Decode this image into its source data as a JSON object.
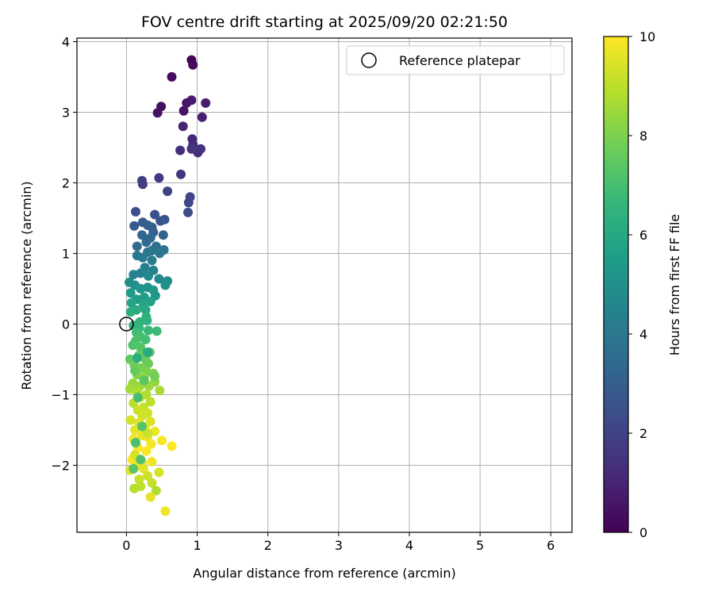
{
  "chart_data": {
    "type": "scatter",
    "title": "FOV centre drift starting at 2025/09/20 02:21:50",
    "xlabel": "Angular distance from reference (arcmin)",
    "ylabel": "Rotation from reference (arcmin)",
    "xlim": [
      -0.7,
      6.3
    ],
    "ylim": [
      -2.95,
      4.05
    ],
    "xticks": [
      0,
      1,
      2,
      3,
      4,
      5,
      6
    ],
    "yticks": [
      -2,
      -1,
      0,
      1,
      2,
      3,
      4
    ],
    "grid": true,
    "legend": {
      "position": "top-right",
      "label": "Reference platepar"
    },
    "reference_point": {
      "x": 0,
      "y": 0
    },
    "colorbar": {
      "label": "Hours from first FF file",
      "min": 0,
      "max": 10,
      "ticks": [
        0,
        2,
        4,
        6,
        8,
        10
      ],
      "colormap": "viridis"
    },
    "colormap_stops": [
      "#440154",
      "#482878",
      "#3e4989",
      "#31688e",
      "#26828e",
      "#1f9e89",
      "#35b779",
      "#6ece58",
      "#b5de2b",
      "#fde725"
    ],
    "points": [
      [
        0.92,
        3.74,
        0.1
      ],
      [
        0.94,
        3.67,
        0.2
      ],
      [
        0.64,
        3.5,
        0.3
      ],
      [
        0.49,
        3.08,
        0.4
      ],
      [
        0.44,
        2.99,
        0.5
      ],
      [
        0.81,
        3.02,
        0.5
      ],
      [
        0.85,
        3.13,
        0.6
      ],
      [
        0.92,
        3.17,
        0.7
      ],
      [
        1.12,
        3.13,
        0.8
      ],
      [
        1.07,
        2.93,
        0.9
      ],
      [
        0.8,
        2.8,
        1.0
      ],
      [
        0.93,
        2.62,
        1.1
      ],
      [
        0.94,
        2.54,
        1.2
      ],
      [
        0.76,
        2.46,
        1.3
      ],
      [
        1.01,
        2.43,
        1.3
      ],
      [
        1.05,
        2.48,
        1.4
      ],
      [
        0.92,
        2.48,
        1.5
      ],
      [
        0.77,
        2.12,
        1.6
      ],
      [
        0.46,
        2.07,
        1.7
      ],
      [
        0.22,
        2.03,
        1.8
      ],
      [
        0.23,
        1.98,
        1.9
      ],
      [
        0.58,
        1.88,
        2.0
      ],
      [
        0.9,
        1.8,
        2.1
      ],
      [
        0.88,
        1.72,
        2.2
      ],
      [
        0.87,
        1.58,
        2.3
      ],
      [
        0.13,
        1.59,
        2.4
      ],
      [
        0.4,
        1.55,
        2.5
      ],
      [
        0.54,
        1.48,
        2.6
      ],
      [
        0.48,
        1.46,
        2.7
      ],
      [
        0.11,
        1.39,
        2.8
      ],
      [
        0.23,
        1.44,
        2.9
      ],
      [
        0.3,
        1.4,
        3.0
      ],
      [
        0.36,
        1.37,
        3.0
      ],
      [
        0.38,
        1.3,
        3.1
      ],
      [
        0.52,
        1.26,
        3.2
      ],
      [
        0.22,
        1.26,
        3.3
      ],
      [
        0.34,
        1.22,
        3.3
      ],
      [
        0.28,
        1.16,
        3.4
      ],
      [
        0.15,
        1.1,
        3.5
      ],
      [
        0.42,
        1.1,
        3.6
      ],
      [
        0.36,
        1.04,
        3.7
      ],
      [
        0.53,
        1.05,
        3.8
      ],
      [
        0.3,
        1.02,
        3.9
      ],
      [
        0.47,
        1.0,
        4.0
      ],
      [
        0.15,
        0.97,
        4.0
      ],
      [
        0.23,
        0.94,
        4.1
      ],
      [
        0.36,
        0.9,
        4.2
      ],
      [
        0.26,
        0.8,
        4.3
      ],
      [
        0.38,
        0.76,
        4.4
      ],
      [
        0.2,
        0.72,
        4.5
      ],
      [
        0.1,
        0.7,
        4.5
      ],
      [
        0.31,
        0.68,
        4.6
      ],
      [
        0.46,
        0.64,
        4.7
      ],
      [
        0.58,
        0.61,
        4.8
      ],
      [
        0.04,
        0.59,
        4.9
      ],
      [
        0.55,
        0.55,
        5.0
      ],
      [
        0.12,
        0.55,
        5.0
      ],
      [
        0.3,
        0.52,
        5.1
      ],
      [
        0.2,
        0.5,
        5.2
      ],
      [
        0.38,
        0.48,
        5.3
      ],
      [
        0.41,
        0.4,
        5.3
      ],
      [
        0.06,
        0.44,
        5.4
      ],
      [
        0.25,
        0.38,
        5.5
      ],
      [
        0.14,
        0.35,
        5.6
      ],
      [
        0.34,
        0.32,
        5.7
      ],
      [
        0.07,
        0.3,
        5.8
      ],
      [
        0.24,
        0.28,
        5.9
      ],
      [
        0.27,
        0.2,
        6.0
      ],
      [
        0.14,
        0.2,
        6.1
      ],
      [
        0.06,
        0.17,
        6.2
      ],
      [
        0.28,
        0.1,
        6.3
      ],
      [
        0.29,
        0.05,
        6.4
      ],
      [
        0.19,
        0.03,
        6.5
      ],
      [
        0.1,
        -0.02,
        6.5
      ],
      [
        0.18,
        -0.06,
        6.6
      ],
      [
        0.31,
        -0.09,
        6.7
      ],
      [
        0.43,
        -0.1,
        6.8
      ],
      [
        0.14,
        -0.12,
        6.9
      ],
      [
        0.2,
        -0.18,
        7.0
      ],
      [
        0.27,
        -0.22,
        7.0
      ],
      [
        0.13,
        -0.24,
        7.1
      ],
      [
        0.09,
        -0.3,
        7.2
      ],
      [
        0.2,
        -0.33,
        7.3
      ],
      [
        0.33,
        -0.4,
        7.4
      ],
      [
        0.18,
        -0.44,
        7.5
      ],
      [
        0.05,
        -0.5,
        7.5
      ],
      [
        0.27,
        -0.5,
        7.6
      ],
      [
        0.31,
        -0.56,
        7.7
      ],
      [
        0.11,
        -0.58,
        7.8
      ],
      [
        0.21,
        -0.62,
        7.9
      ],
      [
        0.29,
        -0.68,
        8.0
      ],
      [
        0.38,
        -0.7,
        8.0
      ],
      [
        0.15,
        -0.72,
        8.1
      ],
      [
        0.25,
        -0.76,
        8.2
      ],
      [
        0.4,
        -0.82,
        8.3
      ],
      [
        0.09,
        -0.84,
        8.4
      ],
      [
        0.19,
        -0.88,
        8.5
      ],
      [
        0.32,
        -0.88,
        8.5
      ],
      [
        0.05,
        -0.92,
        8.6
      ],
      [
        0.47,
        -0.94,
        8.7
      ],
      [
        0.15,
        -0.96,
        8.8
      ],
      [
        0.28,
        -1.0,
        8.8
      ],
      [
        0.19,
        -1.04,
        8.9
      ],
      [
        0.34,
        -1.1,
        9.0
      ],
      [
        0.1,
        -1.12,
        9.0
      ],
      [
        0.24,
        -1.18,
        9.1
      ],
      [
        0.16,
        -1.22,
        9.2
      ],
      [
        0.3,
        -1.26,
        9.3
      ],
      [
        0.22,
        -1.3,
        9.3
      ],
      [
        0.06,
        -1.36,
        9.4
      ],
      [
        0.34,
        -1.38,
        9.5
      ],
      [
        0.18,
        -1.4,
        9.5
      ],
      [
        0.26,
        -1.46,
        9.6
      ],
      [
        0.12,
        -1.5,
        9.6
      ],
      [
        0.4,
        -1.52,
        9.7
      ],
      [
        0.22,
        -1.58,
        9.7
      ],
      [
        0.3,
        -1.6,
        9.8
      ],
      [
        0.1,
        -1.63,
        9.8
      ],
      [
        0.5,
        -1.65,
        9.9
      ],
      [
        0.35,
        -1.7,
        9.9
      ],
      [
        0.64,
        -1.73,
        10.0
      ],
      [
        0.16,
        -1.75,
        10.0
      ],
      [
        0.28,
        -1.8,
        10.0
      ],
      [
        0.08,
        -1.92,
        9.9
      ],
      [
        0.36,
        -1.95,
        9.8
      ],
      [
        0.14,
        -2.0,
        9.7
      ],
      [
        0.24,
        -2.05,
        9.6
      ],
      [
        0.05,
        -2.07,
        9.5
      ],
      [
        0.46,
        -2.1,
        9.4
      ],
      [
        0.3,
        -2.15,
        9.3
      ],
      [
        0.18,
        -2.2,
        9.2
      ],
      [
        0.36,
        -2.25,
        9.1
      ],
      [
        0.2,
        -2.3,
        9.0
      ],
      [
        0.11,
        -2.33,
        8.9
      ],
      [
        0.42,
        -2.36,
        8.8
      ],
      [
        0.34,
        -2.45,
        9.6
      ],
      [
        0.55,
        -2.65,
        9.8
      ],
      [
        0.12,
        -1.85,
        9.4
      ],
      [
        0.22,
        -1.96,
        9.6
      ],
      [
        0.3,
        -1.55,
        9.2
      ],
      [
        0.12,
        -0.66,
        7.6
      ],
      [
        0.25,
        -0.8,
        7.4
      ],
      [
        0.16,
        -1.04,
        7.0
      ],
      [
        0.22,
        -1.45,
        7.3
      ],
      [
        0.13,
        -1.68,
        7.1
      ],
      [
        0.2,
        -1.92,
        7.2
      ],
      [
        0.1,
        -2.05,
        7.4
      ],
      [
        0.4,
        -0.74,
        7.8
      ],
      [
        0.3,
        -0.4,
        6.0
      ],
      [
        0.15,
        -0.48,
        6.2
      ]
    ]
  }
}
